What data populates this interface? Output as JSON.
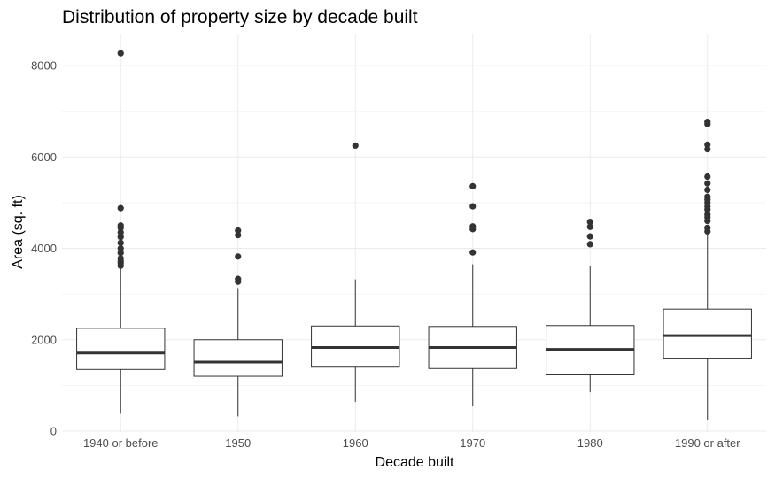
{
  "chart_data": {
    "type": "boxplot",
    "title": "Distribution of property size by decade built",
    "xlabel": "Decade built",
    "ylabel": "Area (sq. ft)",
    "ylim": [
      -20,
      8700
    ],
    "yticks": [
      0,
      2000,
      4000,
      6000,
      8000
    ],
    "grid": true,
    "categories": [
      "1940 or before",
      "1950",
      "1960",
      "1970",
      "1980",
      "1990 or after"
    ],
    "boxes": [
      {
        "category": "1940 or before",
        "lower_whisker": 380,
        "q1": 1350,
        "median": 1710,
        "q3": 2250,
        "upper_whisker": 3580,
        "outliers": [
          3620,
          3680,
          3720,
          3780,
          3900,
          4000,
          4120,
          4250,
          4350,
          4450,
          4500,
          4880,
          8270
        ]
      },
      {
        "category": "1950",
        "lower_whisker": 320,
        "q1": 1200,
        "median": 1510,
        "q3": 2000,
        "upper_whisker": 3130,
        "outliers": [
          3270,
          3330,
          3820,
          4290,
          4390
        ]
      },
      {
        "category": "1960",
        "lower_whisker": 640,
        "q1": 1400,
        "median": 1830,
        "q3": 2300,
        "upper_whisker": 3320,
        "outliers": [
          6250
        ]
      },
      {
        "category": "1970",
        "lower_whisker": 540,
        "q1": 1370,
        "median": 1830,
        "q3": 2290,
        "upper_whisker": 3650,
        "outliers": [
          3910,
          4420,
          4480,
          4920,
          5360
        ]
      },
      {
        "category": "1980",
        "lower_whisker": 850,
        "q1": 1230,
        "median": 1790,
        "q3": 2310,
        "upper_whisker": 3620,
        "outliers": [
          4090,
          4260,
          4470,
          4580
        ]
      },
      {
        "category": "1990 or after",
        "lower_whisker": 240,
        "q1": 1580,
        "median": 2090,
        "q3": 2670,
        "upper_whisker": 4300,
        "outliers": [
          4370,
          4450,
          4600,
          4680,
          4740,
          4850,
          4920,
          5000,
          5070,
          5130,
          5280,
          5420,
          5570,
          6170,
          6270,
          6720,
          6770
        ]
      }
    ],
    "colors": {
      "box_fill": "#ffffff",
      "box_stroke": "#333333",
      "outlier": "#333333",
      "grid": "#ebebeb"
    }
  }
}
